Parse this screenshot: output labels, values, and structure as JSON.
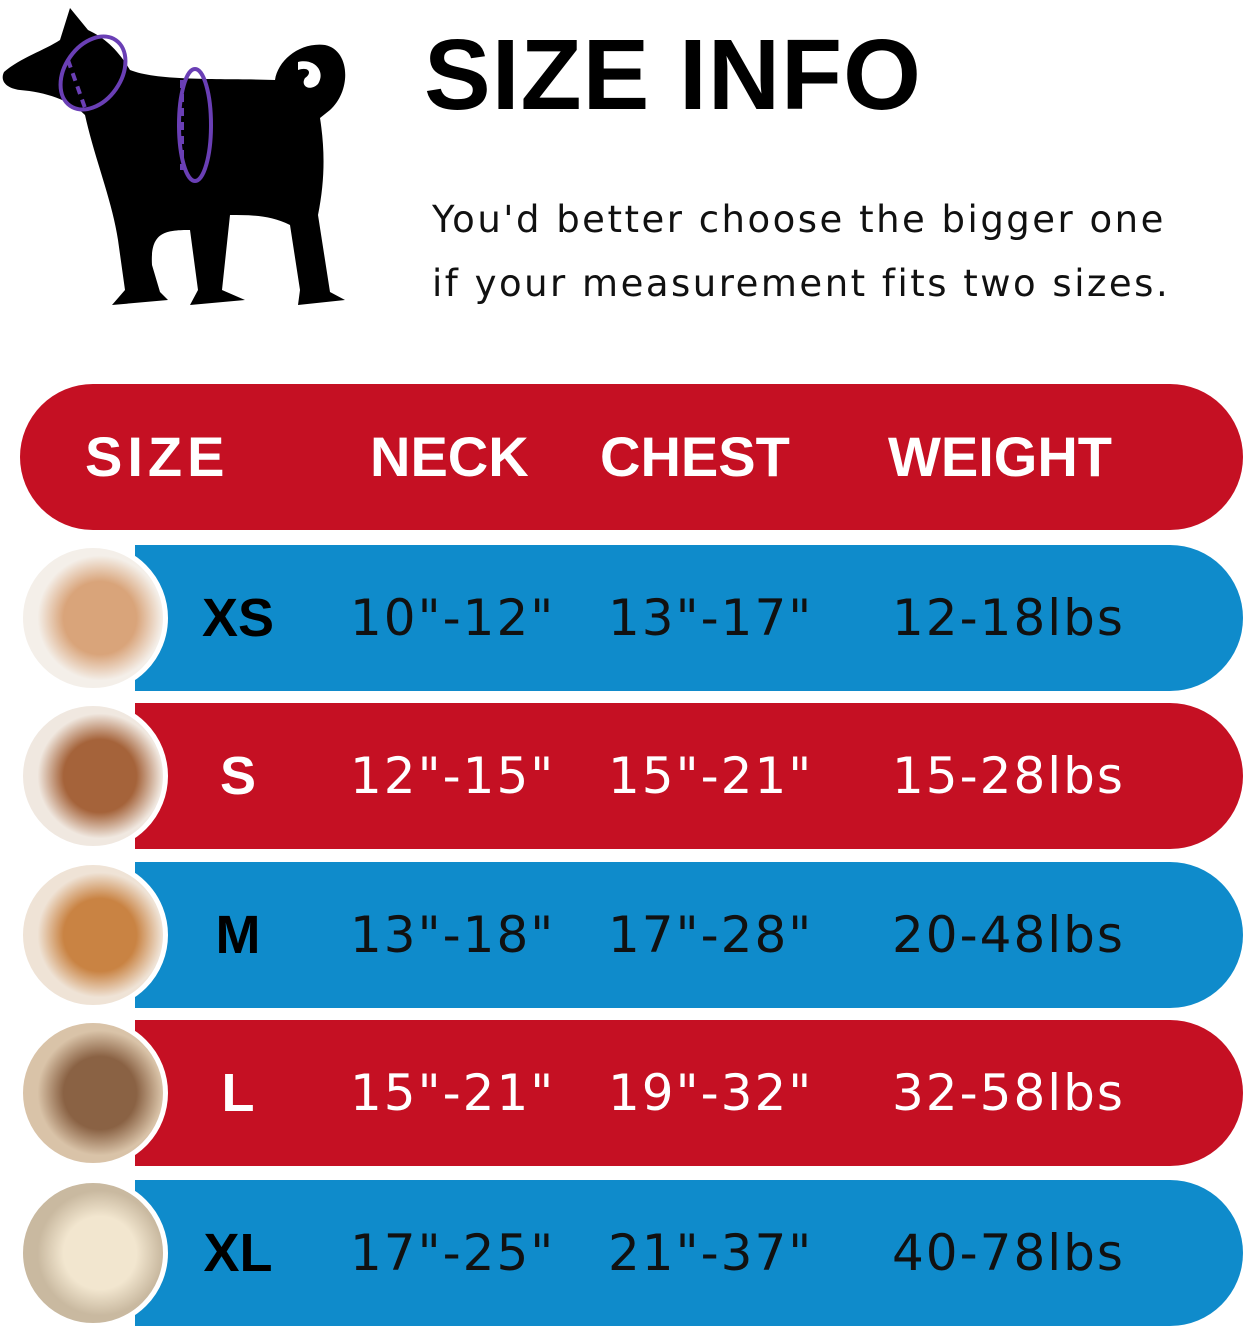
{
  "title": "SIZE INFO",
  "subtitle_lines": [
    "You'd better choose the bigger one",
    "if your measurement fits two sizes."
  ],
  "colors": {
    "red": "#c51023",
    "blue": "#0f8bcb",
    "measure_line": "#6a3fb5"
  },
  "table": {
    "headers": [
      "SIZE",
      "NECK",
      "CHEST",
      "WEIGHT"
    ],
    "rows": [
      {
        "size": "XS",
        "neck": "10\"-12\"",
        "chest": "13\"-17\"",
        "weight": "12-18lbs",
        "photo": "pomeranian"
      },
      {
        "size": "S",
        "neck": "12\"-15\"",
        "chest": "15\"-21\"",
        "weight": "15-28lbs",
        "photo": "poodle"
      },
      {
        "size": "M",
        "neck": "13\"-18\"",
        "chest": "17\"-28\"",
        "weight": "20-48lbs",
        "photo": "shiba-inu"
      },
      {
        "size": "L",
        "neck": "15\"-21\"",
        "chest": "19\"-32\"",
        "weight": "32-58lbs",
        "photo": "french-bulldog"
      },
      {
        "size": "XL",
        "neck": "17\"-25\"",
        "chest": "21\"-37\"",
        "weight": "40-78lbs",
        "photo": "labrador"
      }
    ]
  }
}
